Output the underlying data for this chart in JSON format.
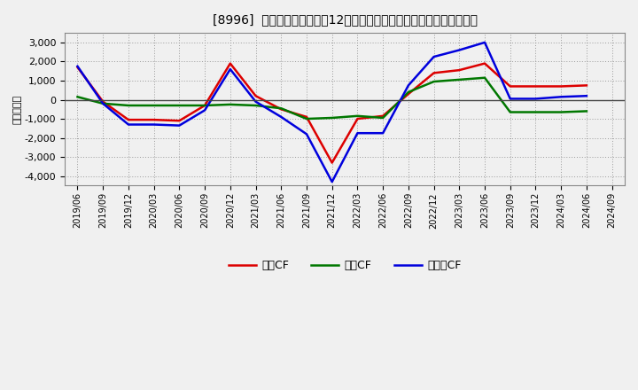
{
  "title": "[8996]  キャッシュフローの12か月移動合計の対前年同期増減額の推移",
  "ylabel": "（百万円）",
  "background_color": "#f0f0f0",
  "plot_background_color": "#f0f0f0",
  "grid_color": "#999999",
  "ylim": [
    -4500,
    3500
  ],
  "yticks": [
    -4000,
    -3000,
    -2000,
    -1000,
    0,
    1000,
    2000,
    3000
  ],
  "labels": [
    "2019/06",
    "2019/09",
    "2019/12",
    "2020/03",
    "2020/06",
    "2020/09",
    "2020/12",
    "2021/03",
    "2021/06",
    "2021/09",
    "2021/12",
    "2022/03",
    "2022/06",
    "2022/09",
    "2022/12",
    "2023/03",
    "2023/06",
    "2023/09",
    "2023/12",
    "2024/03",
    "2024/06",
    "2024/09"
  ],
  "operating_cf": [
    1700,
    -100,
    -1050,
    -1050,
    -1100,
    -300,
    1900,
    200,
    -500,
    -900,
    -3300,
    -1000,
    -850,
    300,
    1400,
    1550,
    1900,
    700,
    700,
    700,
    750,
    null
  ],
  "investing_cf": [
    150,
    -200,
    -300,
    -300,
    -300,
    -300,
    -250,
    -300,
    -450,
    -1000,
    -950,
    -850,
    -950,
    400,
    950,
    1050,
    1150,
    -650,
    -650,
    -650,
    -600,
    null
  ],
  "free_cf": [
    1750,
    -200,
    -1300,
    -1300,
    -1350,
    -550,
    1600,
    -100,
    -900,
    -1800,
    -4300,
    -1750,
    -1750,
    750,
    2250,
    2600,
    3000,
    50,
    50,
    150,
    200,
    null
  ],
  "line_colors": {
    "operating": "#dd0000",
    "investing": "#007700",
    "free": "#0000dd"
  },
  "legend_labels": {
    "operating": "営業CF",
    "investing": "投資CF",
    "free": "フリーCF"
  },
  "line_width": 1.8
}
